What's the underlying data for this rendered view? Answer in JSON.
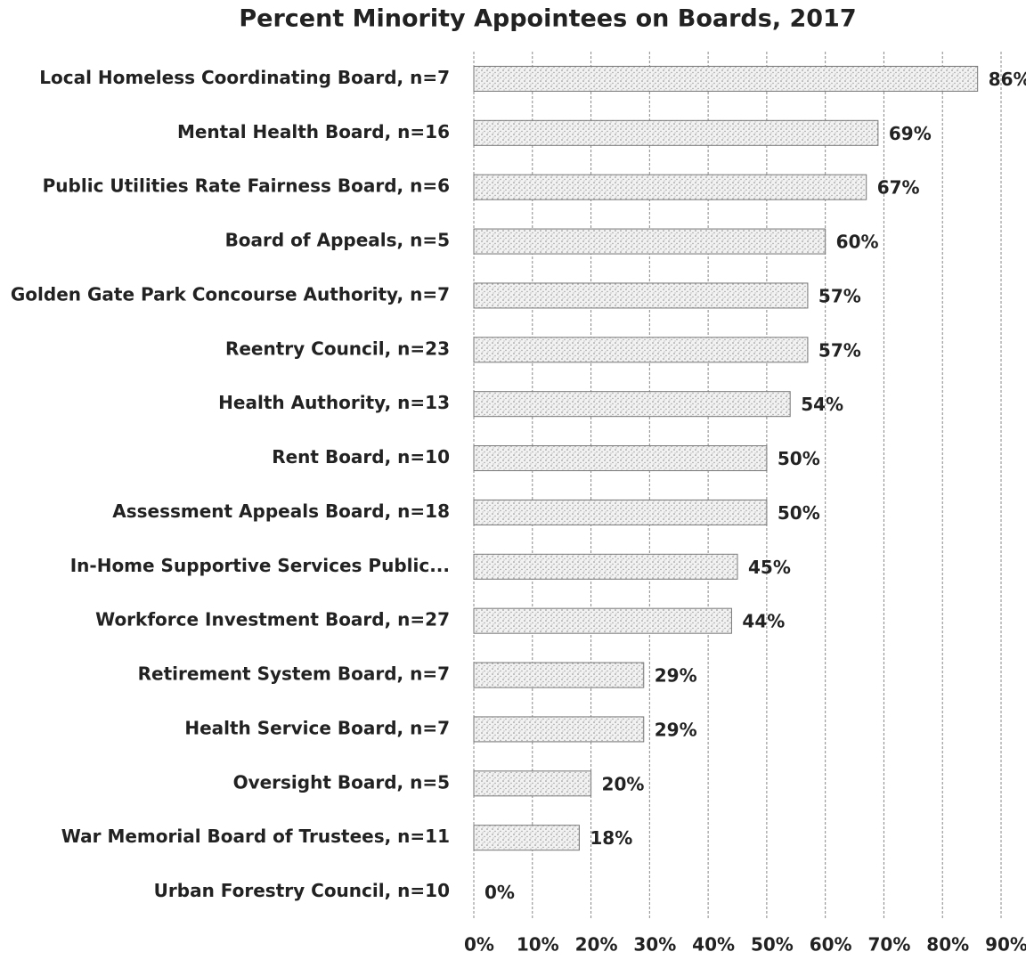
{
  "chart_data": {
    "type": "bar",
    "orientation": "horizontal",
    "title": "Percent Minority Appointees on Boards, 2017",
    "categories": [
      "Local Homeless Coordinating Board, n=7",
      "Mental Health Board, n=16",
      "Public Utilities Rate Fairness Board, n=6",
      "Board of Appeals, n=5",
      "Golden Gate Park Concourse Authority, n=7",
      "Reentry Council, n=23",
      "Health Authority, n=13",
      "Rent Board, n=10",
      "Assessment Appeals Board, n=18",
      "In-Home Supportive Services Public...",
      "Workforce Investment Board, n=27",
      "Retirement System Board, n=7",
      "Health Service Board, n=7",
      "Oversight Board, n=5",
      "War Memorial Board of Trustees, n=11",
      "Urban Forestry Council, n=10"
    ],
    "values": [
      86,
      69,
      67,
      60,
      57,
      57,
      54,
      50,
      50,
      45,
      44,
      29,
      29,
      20,
      18,
      0
    ],
    "value_labels": [
      "86%",
      "69%",
      "67%",
      "60%",
      "57%",
      "57%",
      "54%",
      "50%",
      "50%",
      "45%",
      "44%",
      "29%",
      "29%",
      "20%",
      "18%",
      "0%"
    ],
    "color": "#d4d4d4",
    "xlim": [
      0,
      90
    ],
    "xticks": [
      {
        "value": 0,
        "label": "0%"
      },
      {
        "value": 10,
        "label": "10%"
      },
      {
        "value": 20,
        "label": "20%"
      },
      {
        "value": 30,
        "label": "30%"
      },
      {
        "value": 40,
        "label": "40%"
      },
      {
        "value": 50,
        "label": "50%"
      },
      {
        "value": 60,
        "label": "60%"
      },
      {
        "value": 70,
        "label": "70%"
      },
      {
        "value": 80,
        "label": "80%"
      },
      {
        "value": 90,
        "label": "90%"
      }
    ],
    "grid": true
  }
}
